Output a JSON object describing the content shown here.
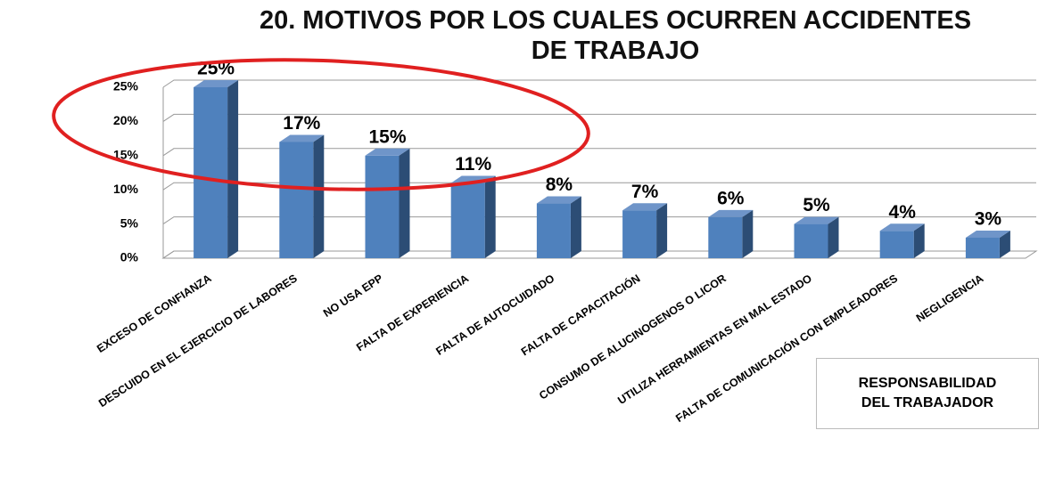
{
  "chart_data": {
    "type": "bar3d",
    "title": "20. MOTIVOS POR LOS CUALES OCURREN ACCIDENTES DE TRABAJO",
    "categories": [
      "EXCESO DE CONFIANZA",
      "DESCUIDO EN EL EJERCICIO DE LABORES",
      "NO USA EPP",
      "FALTA DE EXPERIENCIA",
      "FALTA DE AUTOCUIDADO",
      "FALTA DE CAPACITACIÓN",
      "CONSUMO DE ALUCINOGENOS O LICOR",
      "UTILIZA HERRAMIENTAS EN MAL ESTADO",
      "FALTA DE COMUNICACIÓN CON EMPLEADORES",
      "NEGLIGENCIA"
    ],
    "series": [
      {
        "name": "RESPONSABILIDAD DEL TRABAJADOR",
        "color": "#4f81bd",
        "values": [
          25,
          17,
          15,
          11,
          8,
          7,
          6,
          5,
          4,
          3
        ],
        "value_labels": [
          "25%",
          "17%",
          "15%",
          "11%",
          "8%",
          "7%",
          "6%",
          "5%",
          "4%",
          "3%"
        ]
      }
    ],
    "ylim": [
      0,
      25
    ],
    "yticks": [
      {
        "value": 0,
        "label": "0%"
      },
      {
        "value": 5,
        "label": "5%"
      },
      {
        "value": 10,
        "label": "10%"
      },
      {
        "value": 15,
        "label": "15%"
      },
      {
        "value": 20,
        "label": "20%"
      },
      {
        "value": 25,
        "label": "25%"
      }
    ],
    "grid": true
  }
}
